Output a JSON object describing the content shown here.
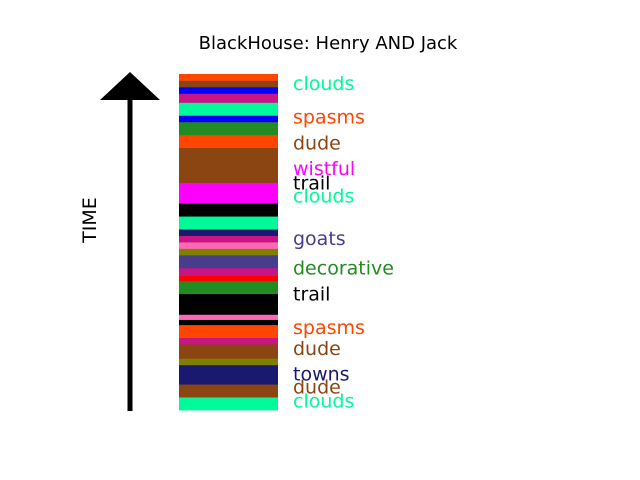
{
  "chart_data": {
    "type": "bar",
    "title": "BlackHouse: Henry AND Jack",
    "ylabel": "TIME",
    "segments": [
      {
        "color": "#00fa9a",
        "y0": 0.0,
        "y1": 1.0
      },
      {
        "color": "#8b4513",
        "y0": 1.0,
        "y1": 2.0
      },
      {
        "color": "#191970",
        "y0": 2.0,
        "y1": 3.5
      },
      {
        "color": "#808000",
        "y0": 3.5,
        "y1": 4.0
      },
      {
        "color": "#8b4513",
        "y0": 4.0,
        "y1": 5.1
      },
      {
        "color": "#c71585",
        "y0": 5.1,
        "y1": 5.6
      },
      {
        "color": "#ff4500",
        "y0": 5.6,
        "y1": 6.6
      },
      {
        "color": "#000000",
        "y0": 6.6,
        "y1": 7.0
      },
      {
        "color": "#ff69b4",
        "y0": 7.0,
        "y1": 7.4
      },
      {
        "color": "#000000",
        "y0": 7.4,
        "y1": 9.0
      },
      {
        "color": "#228b22",
        "y0": 9.0,
        "y1": 10.0
      },
      {
        "color": "#ff0000",
        "y0": 10.0,
        "y1": 10.4
      },
      {
        "color": "#c71585",
        "y0": 10.4,
        "y1": 11.0
      },
      {
        "color": "#483d8b",
        "y0": 11.0,
        "y1": 12.0
      },
      {
        "color": "#808000",
        "y0": 12.0,
        "y1": 12.5
      },
      {
        "color": "#ff69b4",
        "y0": 12.5,
        "y1": 13.0
      },
      {
        "color": "#c71585",
        "y0": 13.0,
        "y1": 13.5
      },
      {
        "color": "#191970",
        "y0": 13.5,
        "y1": 14.0
      },
      {
        "color": "#00fa9a",
        "y0": 14.0,
        "y1": 15.0
      },
      {
        "color": "#000000",
        "y0": 15.0,
        "y1": 16.0
      },
      {
        "color": "#ff00ff",
        "y0": 16.0,
        "y1": 17.6
      },
      {
        "color": "#8b4513",
        "y0": 17.6,
        "y1": 19.0
      },
      {
        "color": "#8b4513",
        "y0": 19.0,
        "y1": 20.3
      },
      {
        "color": "#ff4500",
        "y0": 20.3,
        "y1": 21.3
      },
      {
        "color": "#228b22",
        "y0": 21.3,
        "y1": 22.3
      },
      {
        "color": "#0000ff",
        "y0": 22.3,
        "y1": 22.8
      },
      {
        "color": "#00fa9a",
        "y0": 22.8,
        "y1": 23.8
      },
      {
        "color": "#c71585",
        "y0": 23.8,
        "y1": 24.5
      },
      {
        "color": "#0000ff",
        "y0": 24.5,
        "y1": 25.0
      },
      {
        "color": "#8b4513",
        "y0": 25.0,
        "y1": 25.5
      },
      {
        "color": "#ff4500",
        "y0": 25.5,
        "y1": 26.0
      }
    ],
    "labels": [
      {
        "text": "clouds",
        "y": 0.6,
        "color": "#00fa9a"
      },
      {
        "text": "dude",
        "y": 1.7,
        "color": "#8b4513"
      },
      {
        "text": "towns",
        "y": 2.7,
        "color": "#191970"
      },
      {
        "text": "dude",
        "y": 4.7,
        "color": "#8b4513"
      },
      {
        "text": "spasms",
        "y": 6.3,
        "color": "#ff4500"
      },
      {
        "text": "trail",
        "y": 8.9,
        "color": "#000000"
      },
      {
        "text": "decorative",
        "y": 10.9,
        "color": "#228b22"
      },
      {
        "text": "goats",
        "y": 13.2,
        "color": "#483d8b"
      },
      {
        "text": "clouds",
        "y": 16.5,
        "color": "#00fa9a"
      },
      {
        "text": "trail",
        "y": 17.5,
        "color": "#000000"
      },
      {
        "text": "wistful",
        "y": 18.6,
        "color": "#ff00ff"
      },
      {
        "text": "dude",
        "y": 20.6,
        "color": "#8b4513"
      },
      {
        "text": "spasms",
        "y": 22.6,
        "color": "#ff4500"
      },
      {
        "text": "clouds",
        "y": 25.2,
        "color": "#00fa9a"
      }
    ],
    "ylim": [
      0,
      26
    ],
    "grid": false,
    "legend": "none"
  }
}
